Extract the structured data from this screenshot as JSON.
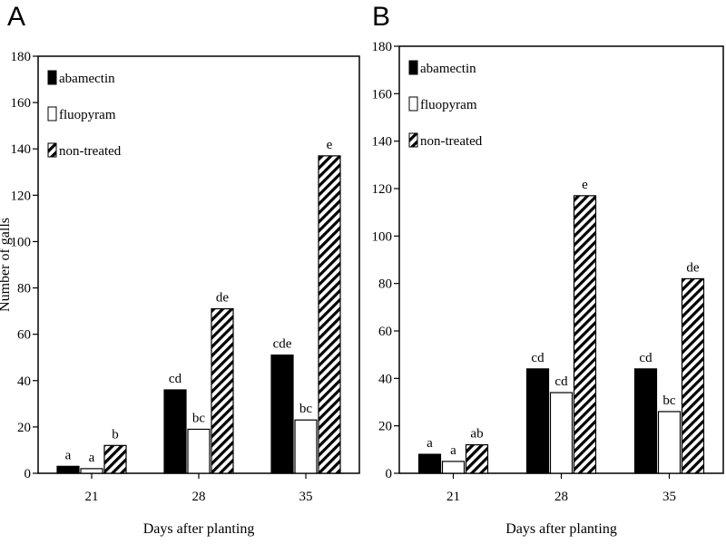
{
  "chart_data": [
    {
      "type": "bar",
      "panel_label": "A",
      "categories": [
        "21",
        "28",
        "35"
      ],
      "series": [
        {
          "name": "abamectin",
          "fill": "solid-black",
          "values": [
            3,
            36,
            51
          ],
          "labels": [
            "a",
            "cd",
            "cde"
          ]
        },
        {
          "name": "fluopyram",
          "fill": "white",
          "values": [
            2,
            19,
            23
          ],
          "labels": [
            "a",
            "bc",
            "bc"
          ]
        },
        {
          "name": "non-treated",
          "fill": "diagonal-hatch",
          "values": [
            12,
            71,
            137
          ],
          "labels": [
            "b",
            "de",
            "e"
          ]
        }
      ],
      "xlabel": "Days after planting",
      "ylabel": "Number of galls",
      "ylim": [
        0,
        180
      ],
      "yticks": [
        "0",
        "20",
        "40",
        "60",
        "80",
        "100",
        "120",
        "140",
        "160",
        "180"
      ],
      "grid": false,
      "legend_position": "top-left"
    },
    {
      "type": "bar",
      "panel_label": "B",
      "categories": [
        "21",
        "28",
        "35"
      ],
      "series": [
        {
          "name": "abamectin",
          "fill": "solid-black",
          "values": [
            8,
            44,
            44
          ],
          "labels": [
            "a",
            "cd",
            "cd"
          ]
        },
        {
          "name": "fluopyram",
          "fill": "white",
          "values": [
            5,
            34,
            26
          ],
          "labels": [
            "a",
            "cd",
            "bc"
          ]
        },
        {
          "name": "non-treated",
          "fill": "diagonal-hatch",
          "values": [
            12,
            117,
            82
          ],
          "labels": [
            "ab",
            "e",
            "de"
          ]
        }
      ],
      "xlabel": "Days after planting",
      "ylabel": "",
      "ylim": [
        0,
        180
      ],
      "yticks": [
        "0",
        "20",
        "40",
        "60",
        "80",
        "100",
        "120",
        "140",
        "160",
        "180"
      ],
      "grid": false,
      "legend_position": "top-left"
    }
  ]
}
